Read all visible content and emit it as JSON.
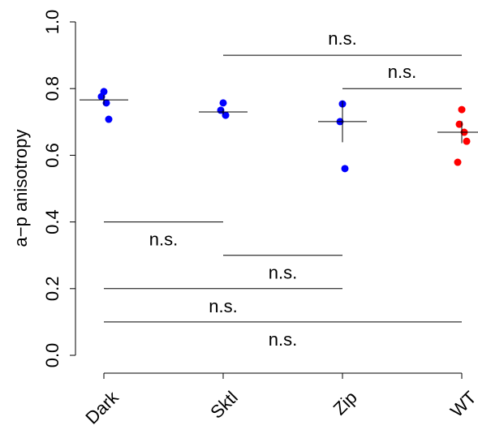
{
  "chart_data": {
    "type": "strip",
    "y_label": "a−p anisotropy",
    "ylim": [
      0,
      1
    ],
    "yticks": [
      {
        "value": 0,
        "label": "0.0"
      },
      0.2,
      0.4,
      0.6,
      0.8,
      {
        "value": 1,
        "label": "1.0"
      }
    ],
    "groups": [
      {
        "name": "Dark",
        "color": "#0000ff",
        "values": [
          0.791,
          0.776,
          0.757,
          0.708
        ],
        "mean": 0.766,
        "error": 0.015
      },
      {
        "name": "Sktl",
        "color": "#0000ff",
        "values": [
          0.757,
          0.735,
          0.72
        ],
        "mean": 0.73,
        "error": 0.008
      },
      {
        "name": "Zip",
        "color": "#0000ff",
        "values": [
          0.754,
          0.701,
          0.56
        ],
        "mean": 0.701,
        "error": 0.062
      },
      {
        "name": "WT",
        "color": "#ff0000",
        "values": [
          0.737,
          0.693,
          0.669,
          0.642,
          0.579
        ],
        "mean": 0.669,
        "error": 0.033
      }
    ],
    "comparisons": [
      {
        "from": 1,
        "to": 3,
        "y": 0.9,
        "label": "n.s."
      },
      {
        "from": 2,
        "to": 3,
        "y": 0.8,
        "label": "n.s."
      },
      {
        "from": 0,
        "to": 1,
        "y": 0.4,
        "label": "n.s."
      },
      {
        "from": 1,
        "to": 2,
        "y": 0.3,
        "label": "n.s."
      },
      {
        "from": 0,
        "to": 2,
        "y": 0.2,
        "label": "n.s."
      },
      {
        "from": 0,
        "to": 3,
        "y": 0.1,
        "label": "n.s."
      }
    ]
  }
}
